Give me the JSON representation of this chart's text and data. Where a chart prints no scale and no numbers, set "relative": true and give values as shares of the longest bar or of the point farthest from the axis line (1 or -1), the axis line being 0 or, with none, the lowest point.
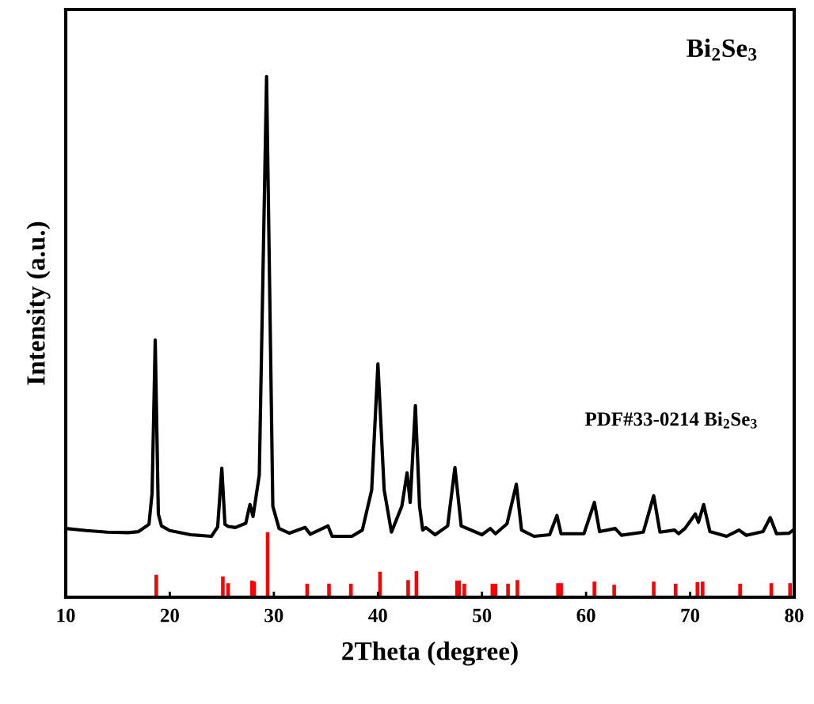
{
  "chart_data": {
    "type": "line",
    "relative": true,
    "xlabel": "2Theta (degree)",
    "ylabel": "Intensity (a.u.)",
    "xlim": [
      10,
      80
    ],
    "xticks": [
      10,
      20,
      30,
      40,
      50,
      60,
      70,
      80
    ],
    "annotations": [
      "Bi$_{2}$Se$_{3}$",
      "PDF#33-0214 Bi$_{2}$Se$_{3}$"
    ],
    "series": [
      {
        "color": "#000000",
        "x": [
          10,
          12,
          14,
          16,
          17,
          18.0,
          18.3,
          18.6,
          18.9,
          19.2,
          20,
          22,
          24,
          24.6,
          25.0,
          25.3,
          25.6,
          26.3,
          27.3,
          27.7,
          28.0,
          28.6,
          29.3,
          29.9,
          30.5,
          31.5,
          33.0,
          33.5,
          35.2,
          35.6,
          37.5,
          38.5,
          39.4,
          40.0,
          40.6,
          41.3,
          42.3,
          42.8,
          43.1,
          43.6,
          44.0,
          44.3,
          44.6,
          45.5,
          46.7,
          47.4,
          48.0,
          50,
          50.8,
          51.3,
          52.4,
          53.3,
          53.8,
          55,
          56.5,
          57.2,
          57.6,
          59.8,
          60.8,
          61.3,
          62.8,
          63.4,
          65.5,
          66.5,
          67.1,
          68.5,
          68.9,
          69.5,
          70.5,
          70.8,
          71.3,
          71.9,
          73.5,
          74.7,
          75.4,
          77.0,
          77.7,
          78.3,
          79.5,
          79.9
        ],
        "values": [
          0.132,
          0.128,
          0.125,
          0.124,
          0.126,
          0.14,
          0.2,
          0.494,
          0.16,
          0.137,
          0.128,
          0.12,
          0.117,
          0.135,
          0.248,
          0.14,
          0.136,
          0.134,
          0.142,
          0.178,
          0.155,
          0.235,
          1.0,
          0.175,
          0.132,
          0.123,
          0.134,
          0.121,
          0.137,
          0.117,
          0.117,
          0.129,
          0.206,
          0.448,
          0.206,
          0.125,
          0.175,
          0.239,
          0.182,
          0.368,
          0.175,
          0.129,
          0.134,
          0.12,
          0.137,
          0.249,
          0.137,
          0.12,
          0.132,
          0.122,
          0.141,
          0.217,
          0.129,
          0.117,
          0.12,
          0.157,
          0.122,
          0.122,
          0.182,
          0.126,
          0.132,
          0.119,
          0.125,
          0.195,
          0.125,
          0.129,
          0.122,
          0.132,
          0.16,
          0.144,
          0.178,
          0.126,
          0.117,
          0.129,
          0.119,
          0.126,
          0.153,
          0.122,
          0.123,
          0.129
        ]
      },
      {
        "type": "bar",
        "color": "#ff0000",
        "x": [
          18.7,
          25.1,
          25.6,
          27.9,
          28.1,
          29.4,
          33.2,
          35.3,
          37.4,
          40.2,
          42.9,
          43.7,
          47.6,
          47.8,
          48.3,
          51.0,
          51.3,
          52.5,
          53.4,
          57.3,
          57.6,
          60.8,
          62.7,
          66.5,
          68.6,
          70.7,
          71.2,
          74.8,
          77.8,
          79.6
        ],
        "values": [
          0.043,
          0.04,
          0.027,
          0.032,
          0.03,
          0.125,
          0.026,
          0.026,
          0.026,
          0.049,
          0.033,
          0.05,
          0.032,
          0.032,
          0.026,
          0.026,
          0.026,
          0.026,
          0.033,
          0.027,
          0.027,
          0.03,
          0.024,
          0.03,
          0.026,
          0.029,
          0.03,
          0.026,
          0.027,
          0.027
        ]
      }
    ]
  }
}
